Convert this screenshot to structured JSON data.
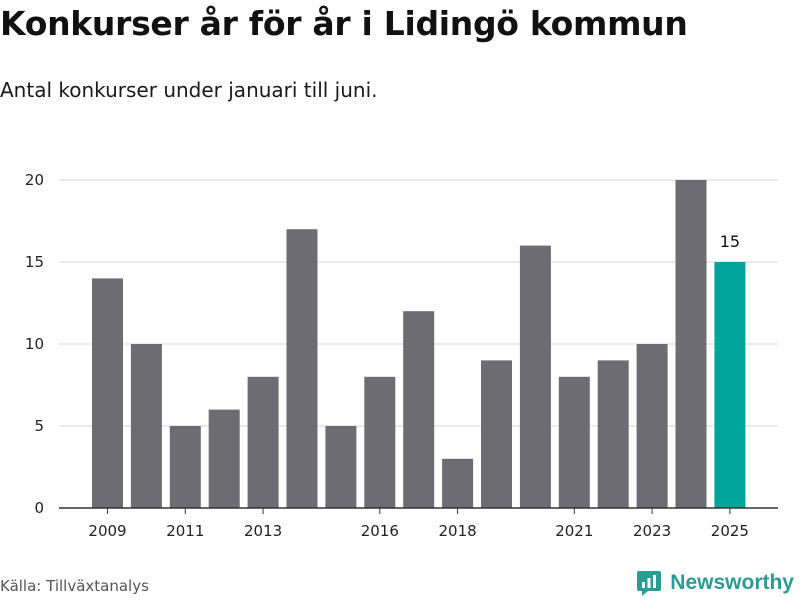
{
  "title": "Konkurser år för år i Lidingö kommun",
  "subtitle": "Antal konkurser under januari till juni.",
  "source": "Källa: Tillväxtanalys",
  "brand": {
    "name": "Newsworthy",
    "icon": "newsworthy-logo-icon",
    "color": "#2a9c92"
  },
  "colors": {
    "bar": "#6d6c72",
    "highlight": "#00a599",
    "grid": "#d6d6d6",
    "axis": "#333333"
  },
  "chart_data": {
    "type": "bar",
    "categories": [
      "2009",
      "2010",
      "2011",
      "2012",
      "2013",
      "2014",
      "2015",
      "2016",
      "2017",
      "2018",
      "2019",
      "2020",
      "2021",
      "2022",
      "2023",
      "2024",
      "2025"
    ],
    "values": [
      14,
      10,
      5,
      6,
      8,
      17,
      5,
      8,
      12,
      3,
      9,
      16,
      8,
      9,
      10,
      20,
      15
    ],
    "x_tick_labels": [
      "2009",
      "2011",
      "2013",
      "2016",
      "2018",
      "2021",
      "2023",
      "2025"
    ],
    "y_ticks": [
      0,
      5,
      10,
      15,
      20
    ],
    "ylim": [
      0,
      20
    ],
    "highlight": {
      "category": "2025",
      "label": "15"
    },
    "grid": true,
    "xlabel": "",
    "ylabel": ""
  }
}
